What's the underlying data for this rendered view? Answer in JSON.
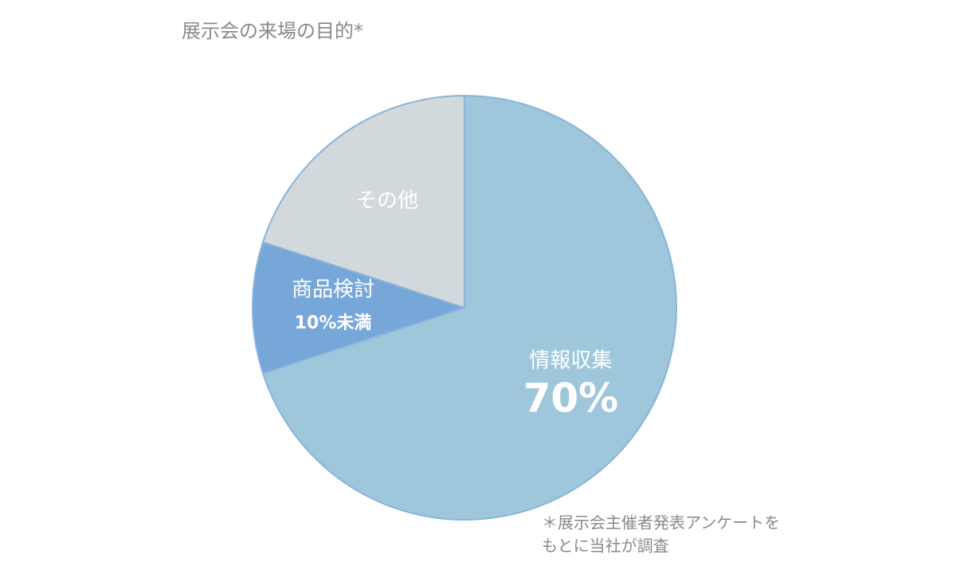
{
  "chart_data": {
    "type": "pie",
    "title": "展示会の来場の目的*",
    "categories": [
      "情報収集",
      "商品検討",
      "その他"
    ],
    "values": [
      70,
      10,
      20
    ],
    "value_labels": [
      "70%",
      "10%未満",
      null
    ],
    "colors": [
      "#9ec7dc",
      "#77a7d9",
      "#d1d9dc"
    ],
    "note_lines": [
      "＊展示会主催者発表アンケートを",
      "もとに当社が調査"
    ]
  }
}
